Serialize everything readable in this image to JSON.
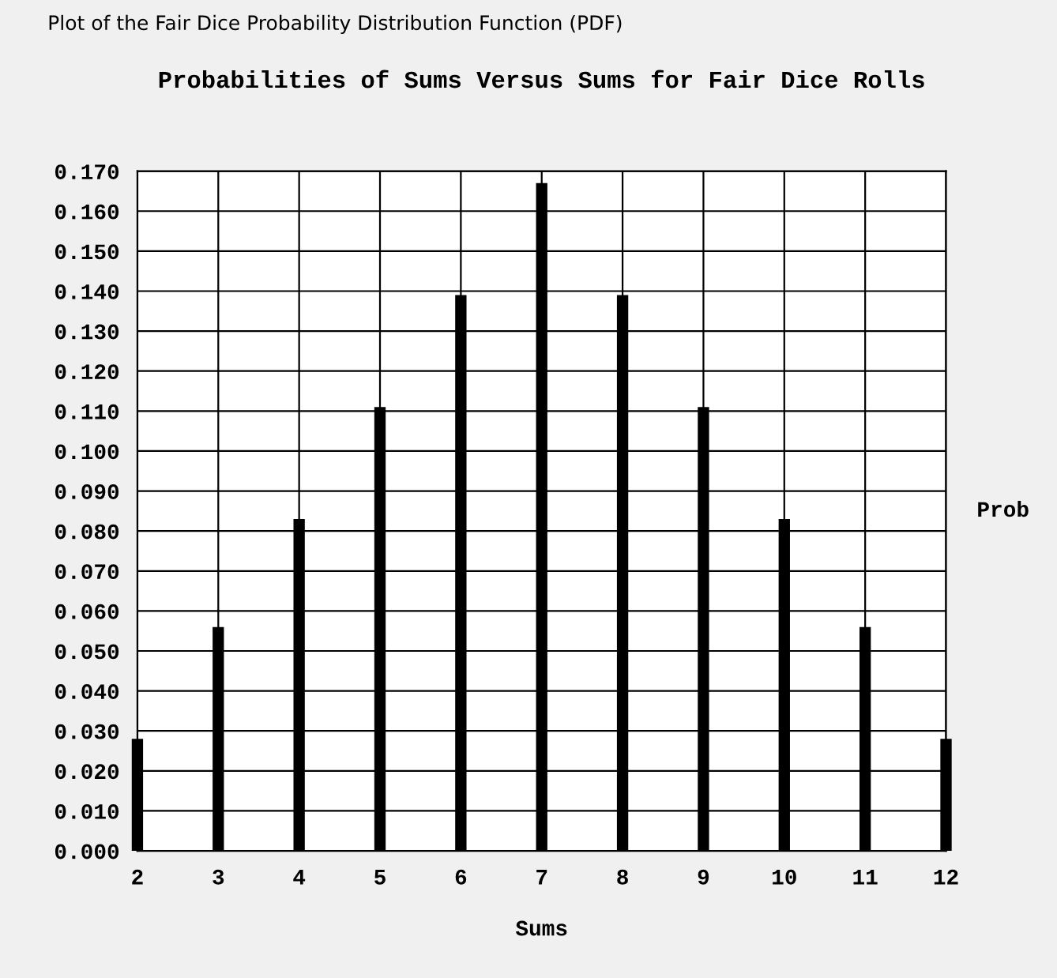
{
  "chart_data": {
    "type": "bar",
    "title": "Probabilities of Sums Versus Sums for Fair Dice Rolls",
    "xlabel": "Sums",
    "ylabel": "Prob",
    "annotations": [
      "Plot of the Fair Dice Probability Distribution Function (PDF)"
    ],
    "x": [
      2,
      3,
      4,
      5,
      6,
      7,
      8,
      9,
      10,
      11,
      12
    ],
    "values": [
      0.028,
      0.056,
      0.083,
      0.111,
      0.139,
      0.167,
      0.139,
      0.111,
      0.083,
      0.056,
      0.028
    ],
    "color": "#000000",
    "xlim": [
      2,
      12
    ],
    "xticks": [
      2,
      3,
      4,
      5,
      6,
      7,
      8,
      9,
      10,
      11,
      12
    ],
    "ylim": [
      0,
      0.17
    ],
    "yticks": [
      {
        "value": 0,
        "label": "0.000"
      },
      {
        "value": 0.01,
        "label": "0.010"
      },
      {
        "value": 0.02,
        "label": "0.020"
      },
      {
        "value": 0.03,
        "label": "0.030"
      },
      {
        "value": 0.04,
        "label": "0.040"
      },
      {
        "value": 0.05,
        "label": "0.050"
      },
      {
        "value": 0.06,
        "label": "0.060"
      },
      {
        "value": 0.07,
        "label": "0.070"
      },
      {
        "value": 0.08,
        "label": "0.080"
      },
      {
        "value": 0.09,
        "label": "0.090"
      },
      {
        "value": 0.1,
        "label": "0.100"
      },
      {
        "value": 0.11,
        "label": "0.110"
      },
      {
        "value": 0.12,
        "label": "0.120"
      },
      {
        "value": 0.13,
        "label": "0.130"
      },
      {
        "value": 0.14,
        "label": "0.140"
      },
      {
        "value": 0.15,
        "label": "0.150"
      },
      {
        "value": 0.16,
        "label": "0.160"
      },
      {
        "value": 0.17,
        "label": "0.170"
      }
    ],
    "grid": true
  }
}
